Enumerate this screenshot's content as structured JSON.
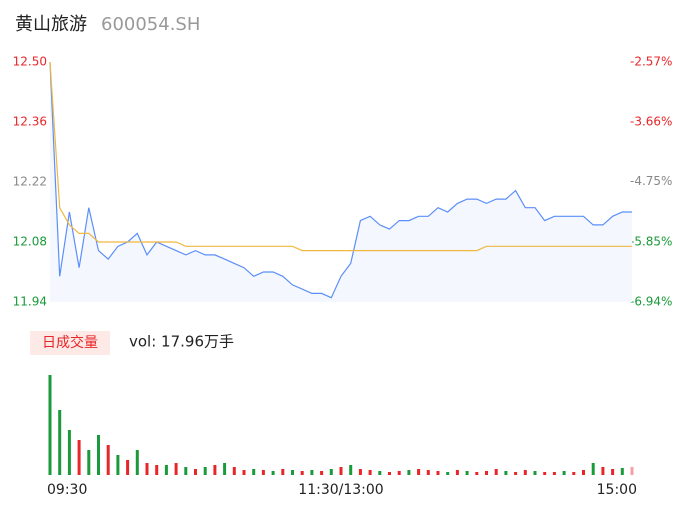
{
  "chart_data": {
    "type": "line",
    "title": "黄山旅游",
    "subtitle": "600054.SH",
    "xlim": [
      0,
      60
    ],
    "xticks": [
      {
        "value": 0,
        "label": "09:30"
      },
      {
        "value": 30,
        "label": "11:30/13:00"
      },
      {
        "value": 60,
        "label": "15:00"
      }
    ],
    "ylim": [
      11.94,
      12.5
    ],
    "yticks": [
      {
        "value": 11.94,
        "label": "11.94"
      },
      {
        "value": 12.08,
        "label": "12.08"
      },
      {
        "value": 12.22,
        "label": "12.22"
      },
      {
        "value": 12.36,
        "label": "12.36"
      },
      {
        "value": 12.5,
        "label": "12.50"
      }
    ],
    "ytick_colors": [
      "#1a9a3a",
      "#1a9a3a",
      "#888888",
      "#e8262a",
      "#e8262a"
    ],
    "y2lim": [
      -6.94,
      -2.57
    ],
    "y2ticks": [
      {
        "value": -6.94,
        "label": "-6.94%"
      },
      {
        "value": -5.85,
        "label": "-5.85%"
      },
      {
        "value": -4.75,
        "label": "-4.75%"
      },
      {
        "value": -3.66,
        "label": "-3.66%"
      },
      {
        "value": -2.57,
        "label": "-2.57%"
      }
    ],
    "series": [
      {
        "name": "price",
        "color": "#5b8ff9",
        "area": "#f4f7fe",
        "values": [
          12.5,
          12.0,
          12.15,
          12.02,
          12.16,
          12.06,
          12.04,
          12.07,
          12.08,
          12.1,
          12.05,
          12.08,
          12.07,
          12.06,
          12.05,
          12.06,
          12.05,
          12.05,
          12.04,
          12.03,
          12.02,
          12.0,
          12.01,
          12.01,
          12.0,
          11.98,
          11.97,
          11.96,
          11.96,
          11.95,
          12.0,
          12.03,
          12.13,
          12.14,
          12.12,
          12.11,
          12.13,
          12.13,
          12.14,
          12.14,
          12.16,
          12.15,
          12.17,
          12.18,
          12.18,
          12.17,
          12.18,
          12.18,
          12.2,
          12.16,
          12.16,
          12.13,
          12.14,
          12.14,
          12.14,
          12.14,
          12.12,
          12.12,
          12.14,
          12.15,
          12.15
        ]
      },
      {
        "name": "average",
        "color": "#f0b840",
        "values": [
          12.5,
          12.16,
          12.12,
          12.1,
          12.1,
          12.08,
          12.08,
          12.08,
          12.08,
          12.08,
          12.08,
          12.08,
          12.08,
          12.08,
          12.07,
          12.07,
          12.07,
          12.07,
          12.07,
          12.07,
          12.07,
          12.07,
          12.07,
          12.07,
          12.07,
          12.07,
          12.06,
          12.06,
          12.06,
          12.06,
          12.06,
          12.06,
          12.06,
          12.06,
          12.06,
          12.06,
          12.06,
          12.06,
          12.06,
          12.06,
          12.06,
          12.06,
          12.06,
          12.06,
          12.06,
          12.07,
          12.07,
          12.07,
          12.07,
          12.07,
          12.07,
          12.07,
          12.07,
          12.07,
          12.07,
          12.07,
          12.07,
          12.07,
          12.07,
          12.07,
          12.07
        ]
      }
    ],
    "volume": {
      "label": "日成交量",
      "text": "vol: 17.96万手",
      "ylim": [
        0,
        100
      ],
      "values": [
        100,
        65,
        45,
        35,
        25,
        40,
        30,
        20,
        15,
        25,
        12,
        10,
        10,
        12,
        8,
        6,
        8,
        10,
        12,
        8,
        5,
        6,
        5,
        4,
        6,
        5,
        4,
        5,
        4,
        6,
        8,
        10,
        6,
        5,
        4,
        3,
        4,
        5,
        6,
        5,
        4,
        3,
        5,
        4,
        3,
        4,
        6,
        4,
        3,
        5,
        4,
        3,
        3,
        4,
        3,
        5,
        12,
        8,
        6,
        7,
        8
      ],
      "colors": [
        "#1a9a3a",
        "#1a9a3a",
        "#1a9a3a",
        "#e8262a",
        "#1a9a3a",
        "#1a9a3a",
        "#e8262a",
        "#1a9a3a",
        "#e8262a",
        "#1a9a3a",
        "#e8262a",
        "#e8262a",
        "#1a9a3a",
        "#e8262a",
        "#1a9a3a",
        "#e8262a",
        "#1a9a3a",
        "#e8262a",
        "#1a9a3a",
        "#e8262a",
        "#e8262a",
        "#1a9a3a",
        "#e8262a",
        "#1a9a3a",
        "#e8262a",
        "#1a9a3a",
        "#e8262a",
        "#1a9a3a",
        "#e8262a",
        "#1a9a3a",
        "#e8262a",
        "#1a9a3a",
        "#e8262a",
        "#e8262a",
        "#1a9a3a",
        "#e8262a",
        "#e8262a",
        "#1a9a3a",
        "#e8262a",
        "#e8262a",
        "#e8262a",
        "#1a9a3a",
        "#e8262a",
        "#1a9a3a",
        "#e8262a",
        "#e8262a",
        "#e8262a",
        "#1a9a3a",
        "#e8262a",
        "#e8262a",
        "#1a9a3a",
        "#e8262a",
        "#e8262a",
        "#1a9a3a",
        "#e8262a",
        "#e8262a",
        "#1a9a3a",
        "#e8262a",
        "#e8262a",
        "#1a9a3a",
        "#f4a0a0"
      ]
    }
  }
}
